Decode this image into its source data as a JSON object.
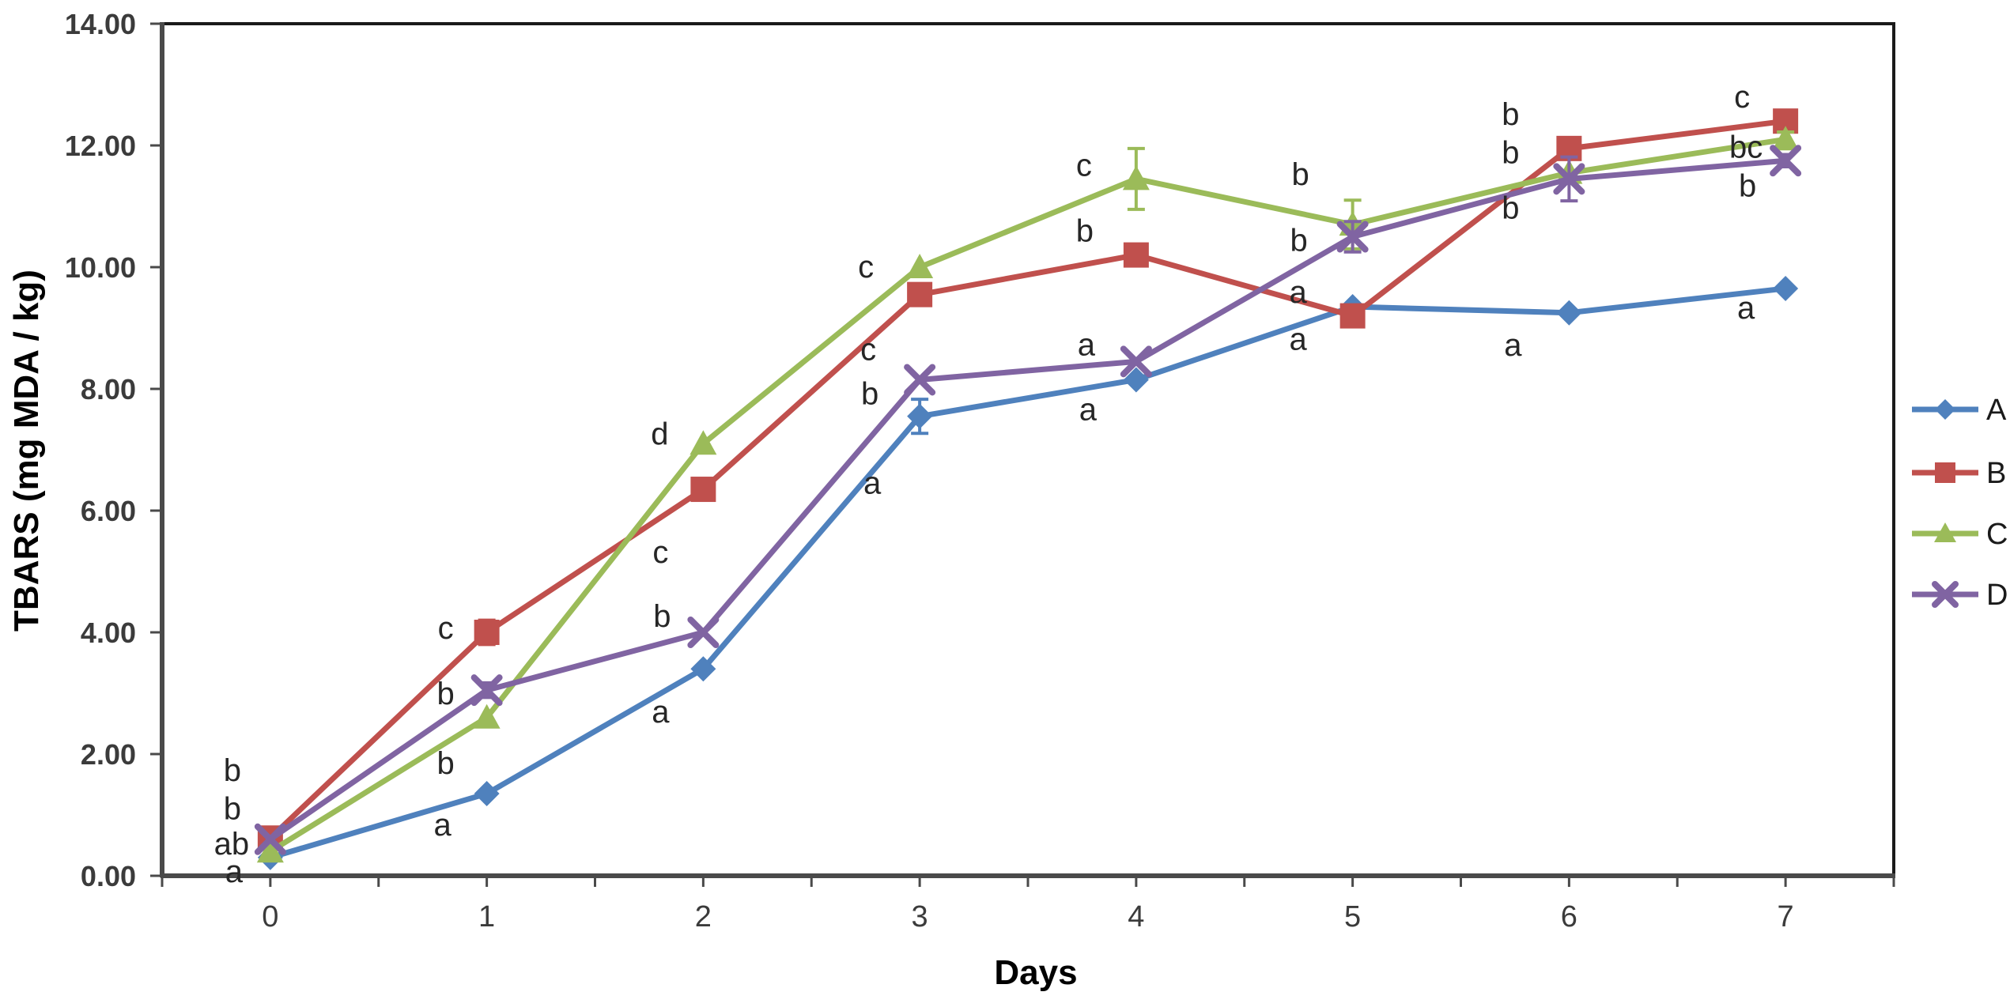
{
  "chart_data": {
    "type": "line",
    "title": "",
    "xlabel": "Days",
    "ylabel": "TBARS (mg MDA / kg)",
    "categories": [
      "0",
      "1",
      "2",
      "3",
      "4",
      "5",
      "6",
      "7"
    ],
    "ylim": [
      0,
      14
    ],
    "ytick_step": 2,
    "ytick_labels": [
      "0.00",
      "2.00",
      "4.00",
      "6.00",
      "8.00",
      "10.00",
      "12.00",
      "14.00"
    ],
    "grid": false,
    "legend_position": "right",
    "default_letter_color": "#262626",
    "axis_color": "#4a4a4a",
    "frame_color": "#1a1a1a",
    "series": [
      {
        "name": "A",
        "color": "#4F81BD",
        "marker": "diamond",
        "values": [
          0.3,
          1.35,
          3.4,
          7.55,
          8.15,
          9.35,
          9.25,
          9.65
        ],
        "errors": [
          0,
          0,
          0,
          0.28,
          0,
          0,
          0,
          0
        ],
        "letters": [
          "a",
          "a",
          "a",
          "a",
          "a",
          "a",
          "a",
          "a"
        ],
        "letter_offsets": [
          [
            -46,
            18
          ],
          [
            -56,
            40
          ],
          [
            -54,
            55
          ],
          [
            -60,
            85
          ],
          [
            -61,
            38
          ],
          [
            -69,
            -18
          ],
          [
            -71,
            41
          ],
          [
            -50,
            25
          ]
        ],
        "letter_colors": [
          "#4F81BD",
          null,
          null,
          null,
          null,
          null,
          null,
          null
        ]
      },
      {
        "name": "B",
        "color": "#C0504D",
        "marker": "square",
        "values": [
          0.62,
          4.0,
          6.35,
          9.55,
          10.2,
          9.2,
          11.95,
          12.4
        ],
        "errors": [
          0,
          0.2,
          0,
          0,
          0,
          0,
          0,
          0.12
        ],
        "letters": [
          "b",
          "c",
          "c",
          "c",
          "b",
          "a",
          "b",
          "c"
        ],
        "letter_offsets": [
          [
            -48,
            -37
          ],
          [
            -52,
            -5
          ],
          [
            -54,
            80
          ],
          [
            -65,
            70
          ],
          [
            -65,
            -30
          ],
          [
            -69,
            30
          ],
          [
            -74,
            -43
          ],
          [
            -55,
            -30
          ]
        ],
        "letter_colors": [
          "#C0504D",
          null,
          null,
          null,
          null,
          null,
          null,
          null
        ]
      },
      {
        "name": "C",
        "color": "#9BBB59",
        "marker": "triangle",
        "values": [
          0.4,
          2.6,
          7.1,
          10.0,
          11.45,
          10.7,
          11.55,
          12.1
        ],
        "errors": [
          0,
          0,
          0,
          0,
          0.5,
          0.4,
          0,
          0.12
        ],
        "letters": [
          "ab",
          "b",
          "d",
          "c",
          "c",
          "b",
          "b",
          "bc"
        ],
        "letter_offsets": [
          [
            -49,
            -9
          ],
          [
            -52,
            58
          ],
          [
            -55,
            -12
          ],
          [
            -68,
            0
          ],
          [
            -66,
            -17
          ],
          [
            -66,
            -63
          ],
          [
            -74,
            -25
          ],
          [
            -50,
            10
          ]
        ],
        "letter_colors": [
          "#9BBB59",
          null,
          null,
          null,
          null,
          null,
          null,
          null
        ]
      },
      {
        "name": "D",
        "color": "#8064A2",
        "marker": "x",
        "values": [
          0.6,
          3.05,
          4.0,
          8.15,
          8.45,
          10.5,
          11.45,
          11.75
        ],
        "errors": [
          0,
          0.12,
          0,
          0,
          0,
          0.25,
          0.36,
          0.1
        ],
        "letters": [
          "b",
          "b",
          "b",
          "b",
          "a",
          "b",
          "b",
          "b"
        ],
        "letter_offsets": [
          [
            -48,
            -87
          ],
          [
            -52,
            5
          ],
          [
            -52,
            -20
          ],
          [
            -63,
            18
          ],
          [
            -63,
            -21
          ],
          [
            -68,
            5
          ],
          [
            -74,
            37
          ],
          [
            -48,
            32
          ]
        ],
        "letter_colors": [
          "#8064A2",
          null,
          null,
          null,
          null,
          null,
          null,
          null
        ]
      }
    ],
    "legend_items": [
      "A",
      "B",
      "C",
      "D"
    ]
  }
}
